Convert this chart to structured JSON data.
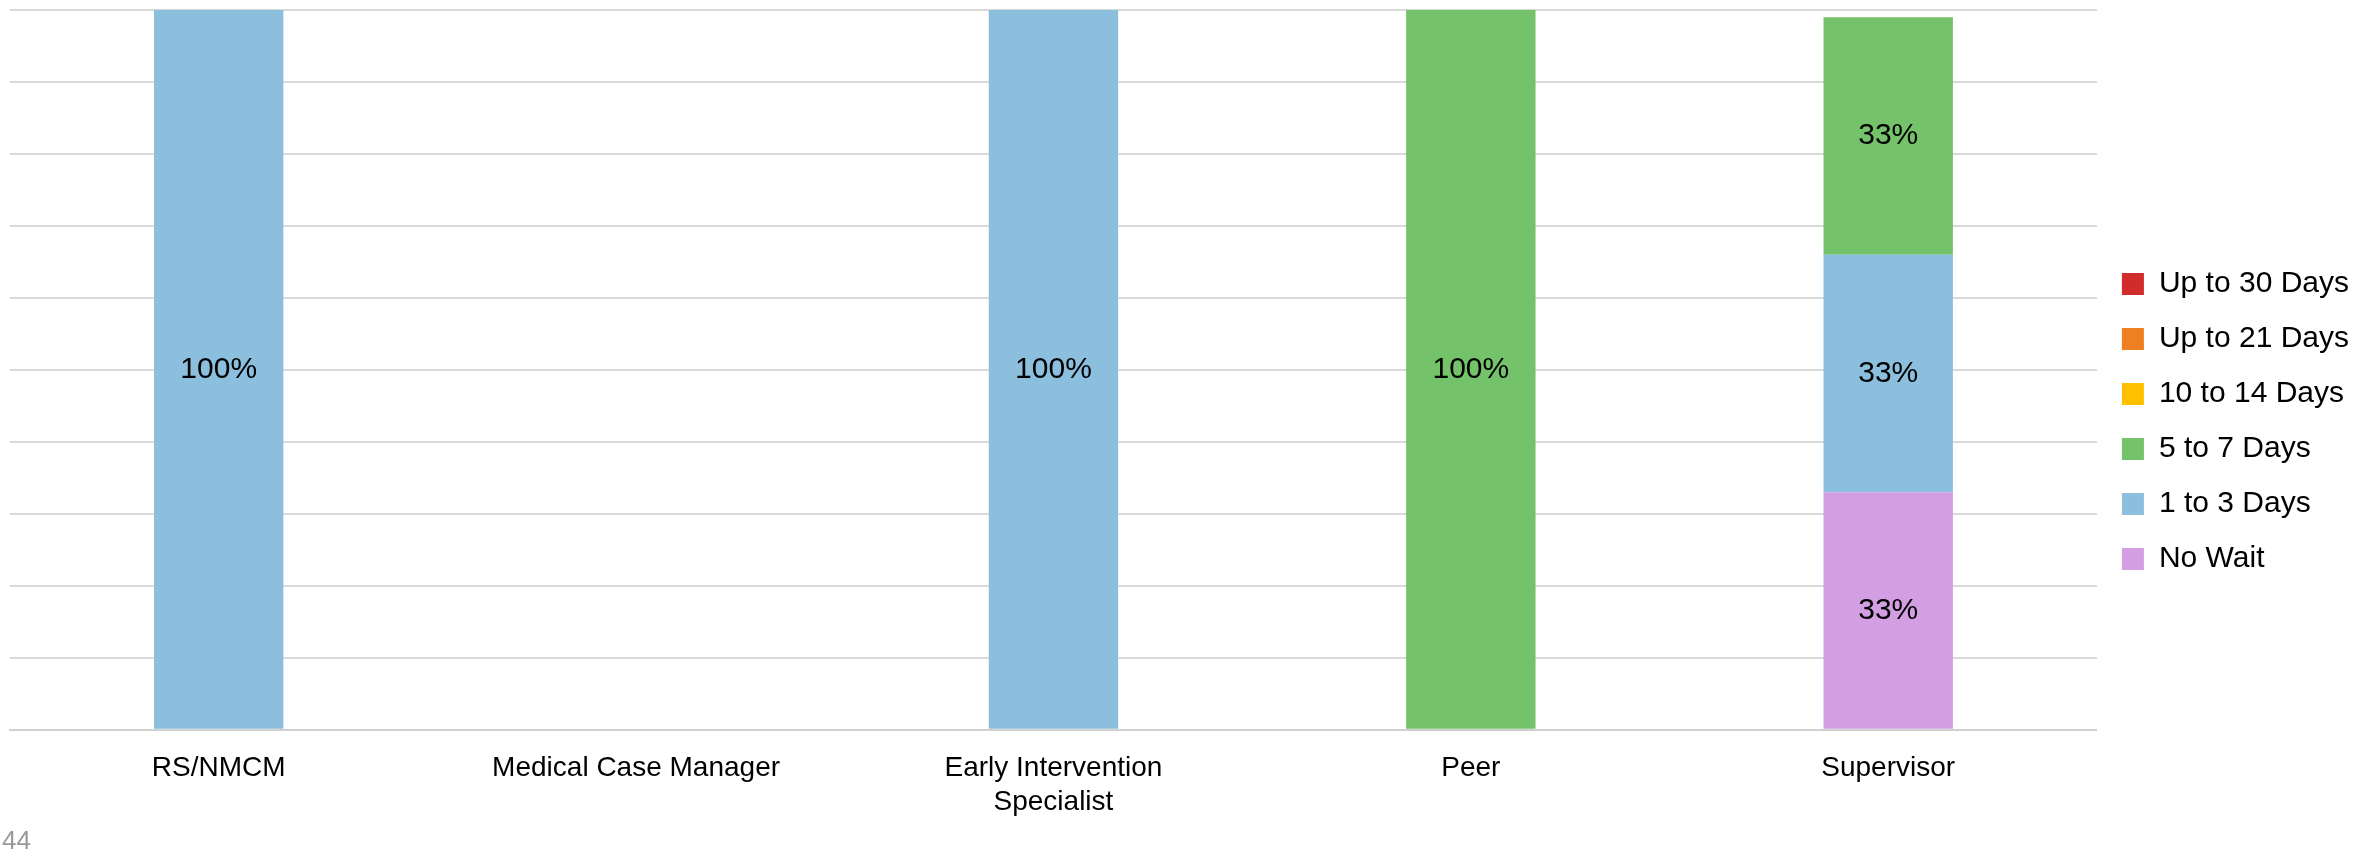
{
  "chart_data": {
    "type": "bar",
    "stacked": true,
    "categories": [
      "RS/NMCM",
      "Medical Case Manager",
      "Early Intervention Specialist",
      "Peer",
      "Supervisor"
    ],
    "series": [
      {
        "name": "No Wait",
        "color": "#d39fe2",
        "values": [
          null,
          null,
          null,
          null,
          33
        ],
        "value_labels": [
          null,
          null,
          null,
          null,
          "33%"
        ]
      },
      {
        "name": "1 to 3 Days",
        "color": "#8bbfdd",
        "values": [
          100,
          null,
          100,
          null,
          33
        ],
        "value_labels": [
          "100%",
          null,
          "100%",
          null,
          "33%"
        ]
      },
      {
        "name": "5 to 7 Days",
        "color": "#74c26a",
        "values": [
          null,
          null,
          null,
          100,
          33
        ],
        "value_labels": [
          null,
          null,
          null,
          "100%",
          "33%"
        ]
      },
      {
        "name": "10 to 14 Days",
        "color": "#ffc000",
        "values": [
          null,
          null,
          null,
          null,
          null
        ]
      },
      {
        "name": "Up to 21 Days",
        "color": "#f07f22",
        "values": [
          null,
          null,
          null,
          null,
          null
        ]
      },
      {
        "name": "Up to 30 Days",
        "color": "#d22b2b",
        "values": [
          null,
          null,
          null,
          null,
          null
        ]
      }
    ],
    "ylim": [
      0,
      100
    ],
    "yticks": [
      {
        "value": 0,
        "label": null
      },
      {
        "value": 10,
        "label": null
      },
      {
        "value": 20,
        "label": null
      },
      {
        "value": 30,
        "label": null
      },
      {
        "value": 40,
        "label": null
      },
      {
        "value": 50,
        "label": null
      },
      {
        "value": 60,
        "label": null
      },
      {
        "value": 70,
        "label": null
      },
      {
        "value": 80,
        "label": null
      },
      {
        "value": 90,
        "label": null
      },
      {
        "value": 100,
        "label": null
      }
    ],
    "grid": "y",
    "legend": "right",
    "tick_labels": "x",
    "annotations": [
      "44"
    ]
  }
}
